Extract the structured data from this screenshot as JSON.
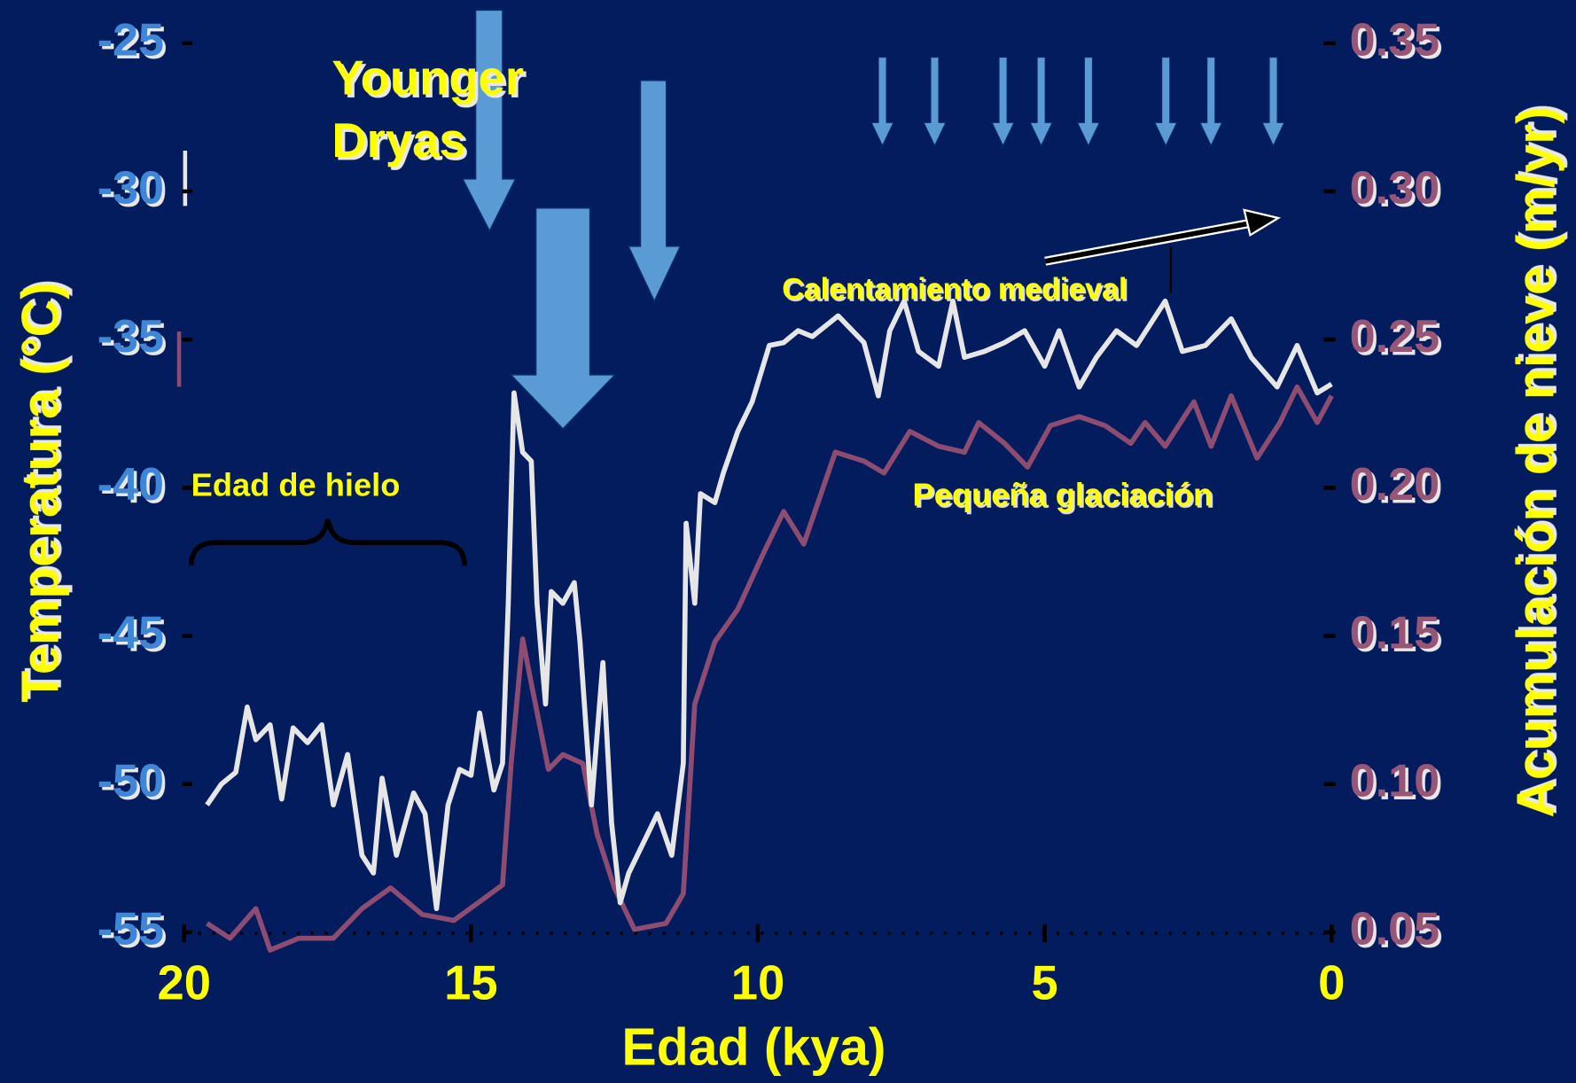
{
  "chart_data": {
    "type": "line",
    "xlabel": "Edad (kya)",
    "ylabel": "Temperatura (°C)",
    "y2label": "Acumulación de nieve (m/yr)",
    "xlim": [
      20,
      0
    ],
    "xticks": [
      20,
      15,
      10,
      5,
      0
    ],
    "ylim": [
      -55,
      -25
    ],
    "yticks": [
      -25,
      -30,
      -35,
      -40,
      -45,
      -50,
      -55
    ],
    "y2lim": [
      0.05,
      0.35
    ],
    "y2ticks": [
      0.35,
      {
        "value": 0.3,
        "label": "0.30"
      },
      0.25,
      {
        "value": 0.2,
        "label": "0.20"
      },
      0.15,
      {
        "value": 0.1,
        "label": "0.10"
      },
      0.05
    ],
    "annotations": [
      {
        "text": "Younger Dryas"
      },
      {
        "text": "Edad de hielo"
      },
      {
        "text": "Calentamiento medieval"
      },
      {
        "text": "Pequeña glaciación"
      }
    ],
    "series": [
      {
        "color": "#e6e6e6",
        "axis": "y",
        "x": [
          19.6,
          19.35,
          19.1,
          18.9,
          18.75,
          18.5,
          18.3,
          18.1,
          17.85,
          17.6,
          17.4,
          17.15,
          16.9,
          16.7,
          16.55,
          16.3,
          16.0,
          15.8,
          15.6,
          15.4,
          15.2,
          15.0,
          14.85,
          14.6,
          14.45,
          14.35,
          14.25,
          14.1,
          13.95,
          13.85,
          13.7,
          13.6,
          13.4,
          13.2,
          13.1,
          12.9,
          12.7,
          12.55,
          12.4,
          12.25,
          12.0,
          11.75,
          11.5,
          11.3,
          11.25,
          11.1,
          11.0,
          10.75,
          10.6,
          10.35,
          10.1,
          9.8,
          9.55,
          9.3,
          9.05,
          8.6,
          8.15,
          7.9,
          7.7,
          7.45,
          7.2,
          6.85,
          6.6,
          6.4,
          6.05,
          5.7,
          5.35,
          5.0,
          4.75,
          4.4,
          4.1,
          3.75,
          3.4,
          2.9,
          2.6,
          2.2,
          1.75,
          1.4,
          0.95,
          0.6,
          0.25,
          0.0
        ],
        "values": [
          -50.7,
          -50.0,
          -49.6,
          -47.4,
          -48.5,
          -48.0,
          -50.5,
          -48.1,
          -48.6,
          -48.0,
          -50.7,
          -49.0,
          -52.4,
          -53.0,
          -49.8,
          -52.4,
          -50.3,
          -51.0,
          -54.2,
          -50.7,
          -49.5,
          -49.7,
          -47.6,
          -50.2,
          -49.3,
          -43.9,
          -36.8,
          -38.8,
          -39.1,
          -43.9,
          -47.3,
          -43.5,
          -43.9,
          -43.2,
          -45.2,
          -50.7,
          -45.9,
          -51.3,
          -54.0,
          -53.0,
          -52.0,
          -51.0,
          -52.4,
          -49.3,
          -41.2,
          -43.9,
          -40.2,
          -40.5,
          -39.5,
          -38.1,
          -37.1,
          -35.2,
          -35.1,
          -34.7,
          -34.9,
          -34.2,
          -35.1,
          -36.9,
          -34.7,
          -33.7,
          -35.4,
          -35.9,
          -33.7,
          -35.6,
          -35.4,
          -35.1,
          -34.7,
          -35.9,
          -34.7,
          -36.6,
          -35.6,
          -34.7,
          -35.2,
          -33.7,
          -35.4,
          -35.2,
          -34.3,
          -35.6,
          -36.6,
          -35.2,
          -36.8,
          -36.5
        ]
      },
      {
        "color": "#8e4c70",
        "axis": "y2",
        "x": [
          19.6,
          19.2,
          18.75,
          18.5,
          18.0,
          17.4,
          16.9,
          16.4,
          15.85,
          15.3,
          14.8,
          14.45,
          14.3,
          14.1,
          13.95,
          13.65,
          13.4,
          13.05,
          12.8,
          12.5,
          12.15,
          11.6,
          11.3,
          11.1,
          10.75,
          10.35,
          9.9,
          9.55,
          9.2,
          8.65,
          8.15,
          7.8,
          7.35,
          6.85,
          6.4,
          6.15,
          5.7,
          5.3,
          4.9,
          4.4,
          3.95,
          3.5,
          3.25,
          2.9,
          2.4,
          2.1,
          1.75,
          1.3,
          0.9,
          0.6,
          0.25,
          0.0
        ],
        "values": [
          0.053,
          0.048,
          0.058,
          0.044,
          0.048,
          0.048,
          0.058,
          0.065,
          0.056,
          0.054,
          0.061,
          0.066,
          0.107,
          0.149,
          0.134,
          0.105,
          0.11,
          0.107,
          0.083,
          0.065,
          0.051,
          0.053,
          0.063,
          0.127,
          0.148,
          0.159,
          0.178,
          0.192,
          0.181,
          0.212,
          0.209,
          0.205,
          0.219,
          0.214,
          0.212,
          0.222,
          0.215,
          0.207,
          0.221,
          0.224,
          0.221,
          0.215,
          0.222,
          0.214,
          0.229,
          0.214,
          0.231,
          0.21,
          0.222,
          0.234,
          0.222,
          0.231
        ]
      }
    ]
  }
}
